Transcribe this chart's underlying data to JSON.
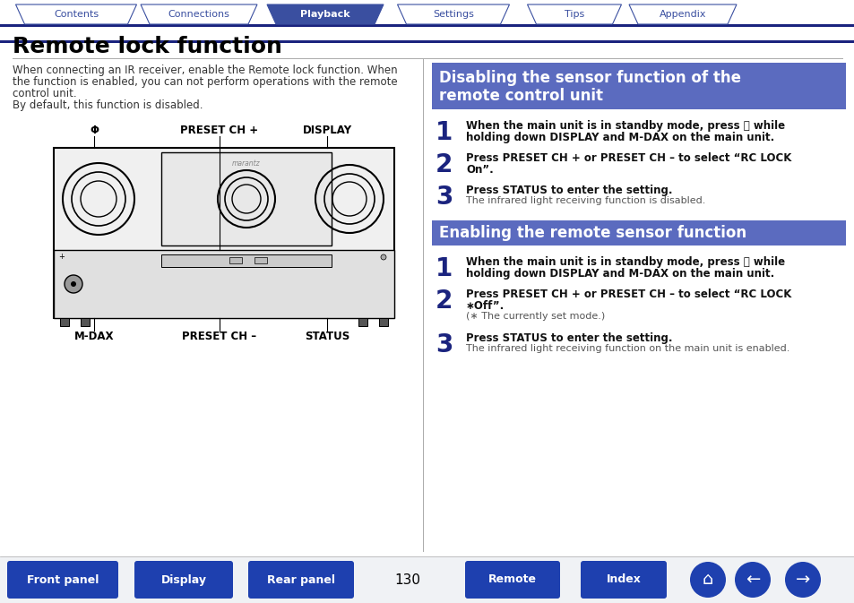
{
  "title": "Remote lock function",
  "nav_tabs": [
    "Contents",
    "Connections",
    "Playback",
    "Settings",
    "Tips",
    "Appendix"
  ],
  "active_tab_idx": 2,
  "tab_bg_active": "#3a4fa0",
  "tab_bg_inactive": "#ffffff",
  "tab_text_active": "#ffffff",
  "tab_text_inactive": "#3a4fa0",
  "tab_border_color": "#3a4fa0",
  "nav_bar_color": "#1a237e",
  "body_bg": "#ffffff",
  "title_color": "#000000",
  "title_fontsize": 18,
  "intro_text_lines": [
    "When connecting an IR receiver, enable the Remote lock function. When",
    "the function is enabled, you can not perform operations with the remote",
    "control unit.",
    "By default, this function is disabled."
  ],
  "intro_fontsize": 8.5,
  "section1_title_line1": "Disabling the sensor function of the",
  "section1_title_line2": "remote control unit",
  "section1_bg": "#5b6bbf",
  "section1_text_color": "#ffffff",
  "section1_steps": [
    {
      "num": "1",
      "bold": "When the main unit is in standby mode, press ⏻ while\nholding down DISPLAY and M-DAX on the main unit.",
      "normal": ""
    },
    {
      "num": "2",
      "bold": "Press PRESET CH + or PRESET CH – to select “RC LOCK\nOn”.",
      "normal": ""
    },
    {
      "num": "3",
      "bold": "Press STATUS to enter the setting.",
      "normal": "The infrared light receiving function is disabled."
    }
  ],
  "section2_title": "Enabling the remote sensor function",
  "section2_bg": "#5b6bbf",
  "section2_text_color": "#ffffff",
  "section2_steps": [
    {
      "num": "1",
      "bold": "When the main unit is in standby mode, press ⏻ while\nholding down DISPLAY and M-DAX on the main unit.",
      "normal": ""
    },
    {
      "num": "2",
      "bold": "Press PRESET CH + or PRESET CH – to select “RC LOCK\n∗Off”.",
      "normal": "(∗ The currently set mode.)"
    },
    {
      "num": "3",
      "bold": "Press STATUS to enter the setting.",
      "normal": "The infrared light receiving function on the main unit is enabled."
    }
  ],
  "footer_bg": "#1e40af",
  "footer_page": "130",
  "step_num_color": "#1a237e",
  "divider_color": "#aaaaaa",
  "section_divider_color": "#5b6bbf"
}
